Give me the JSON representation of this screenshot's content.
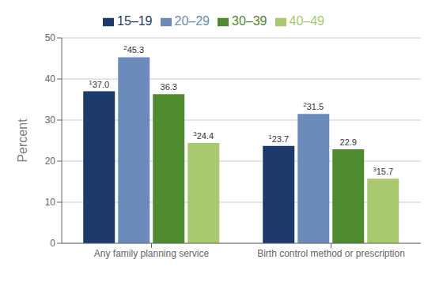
{
  "chart_data": {
    "type": "bar",
    "categories": [
      "Any family planning service",
      "Birth control method or prescription"
    ],
    "series": [
      {
        "name": "15–19",
        "color": "#1b3a6b",
        "values": [
          37.0,
          23.7
        ],
        "value_labels": [
          "37.0",
          "23.7"
        ],
        "annotations": [
          "1",
          "1"
        ]
      },
      {
        "name": "20–29",
        "color": "#6b8cba",
        "values": [
          45.3,
          31.5
        ],
        "value_labels": [
          "45.3",
          "31.5"
        ],
        "annotations": [
          "2",
          "2"
        ]
      },
      {
        "name": "30–39",
        "color": "#4e8a2e",
        "values": [
          36.3,
          22.9
        ],
        "value_labels": [
          "36.3",
          "22.9"
        ]
      },
      {
        "name": "40–49",
        "color": "#a8c96e",
        "values": [
          24.4,
          15.7
        ],
        "value_labels": [
          "24.4",
          "15.7"
        ],
        "annotations": [
          "3",
          "3"
        ]
      }
    ],
    "ylabel": "Percent",
    "ylim": [
      0,
      50
    ],
    "yticks": [
      0,
      10,
      20,
      30,
      40,
      50
    ],
    "grid": true,
    "legend": "top",
    "data_labels": true
  }
}
